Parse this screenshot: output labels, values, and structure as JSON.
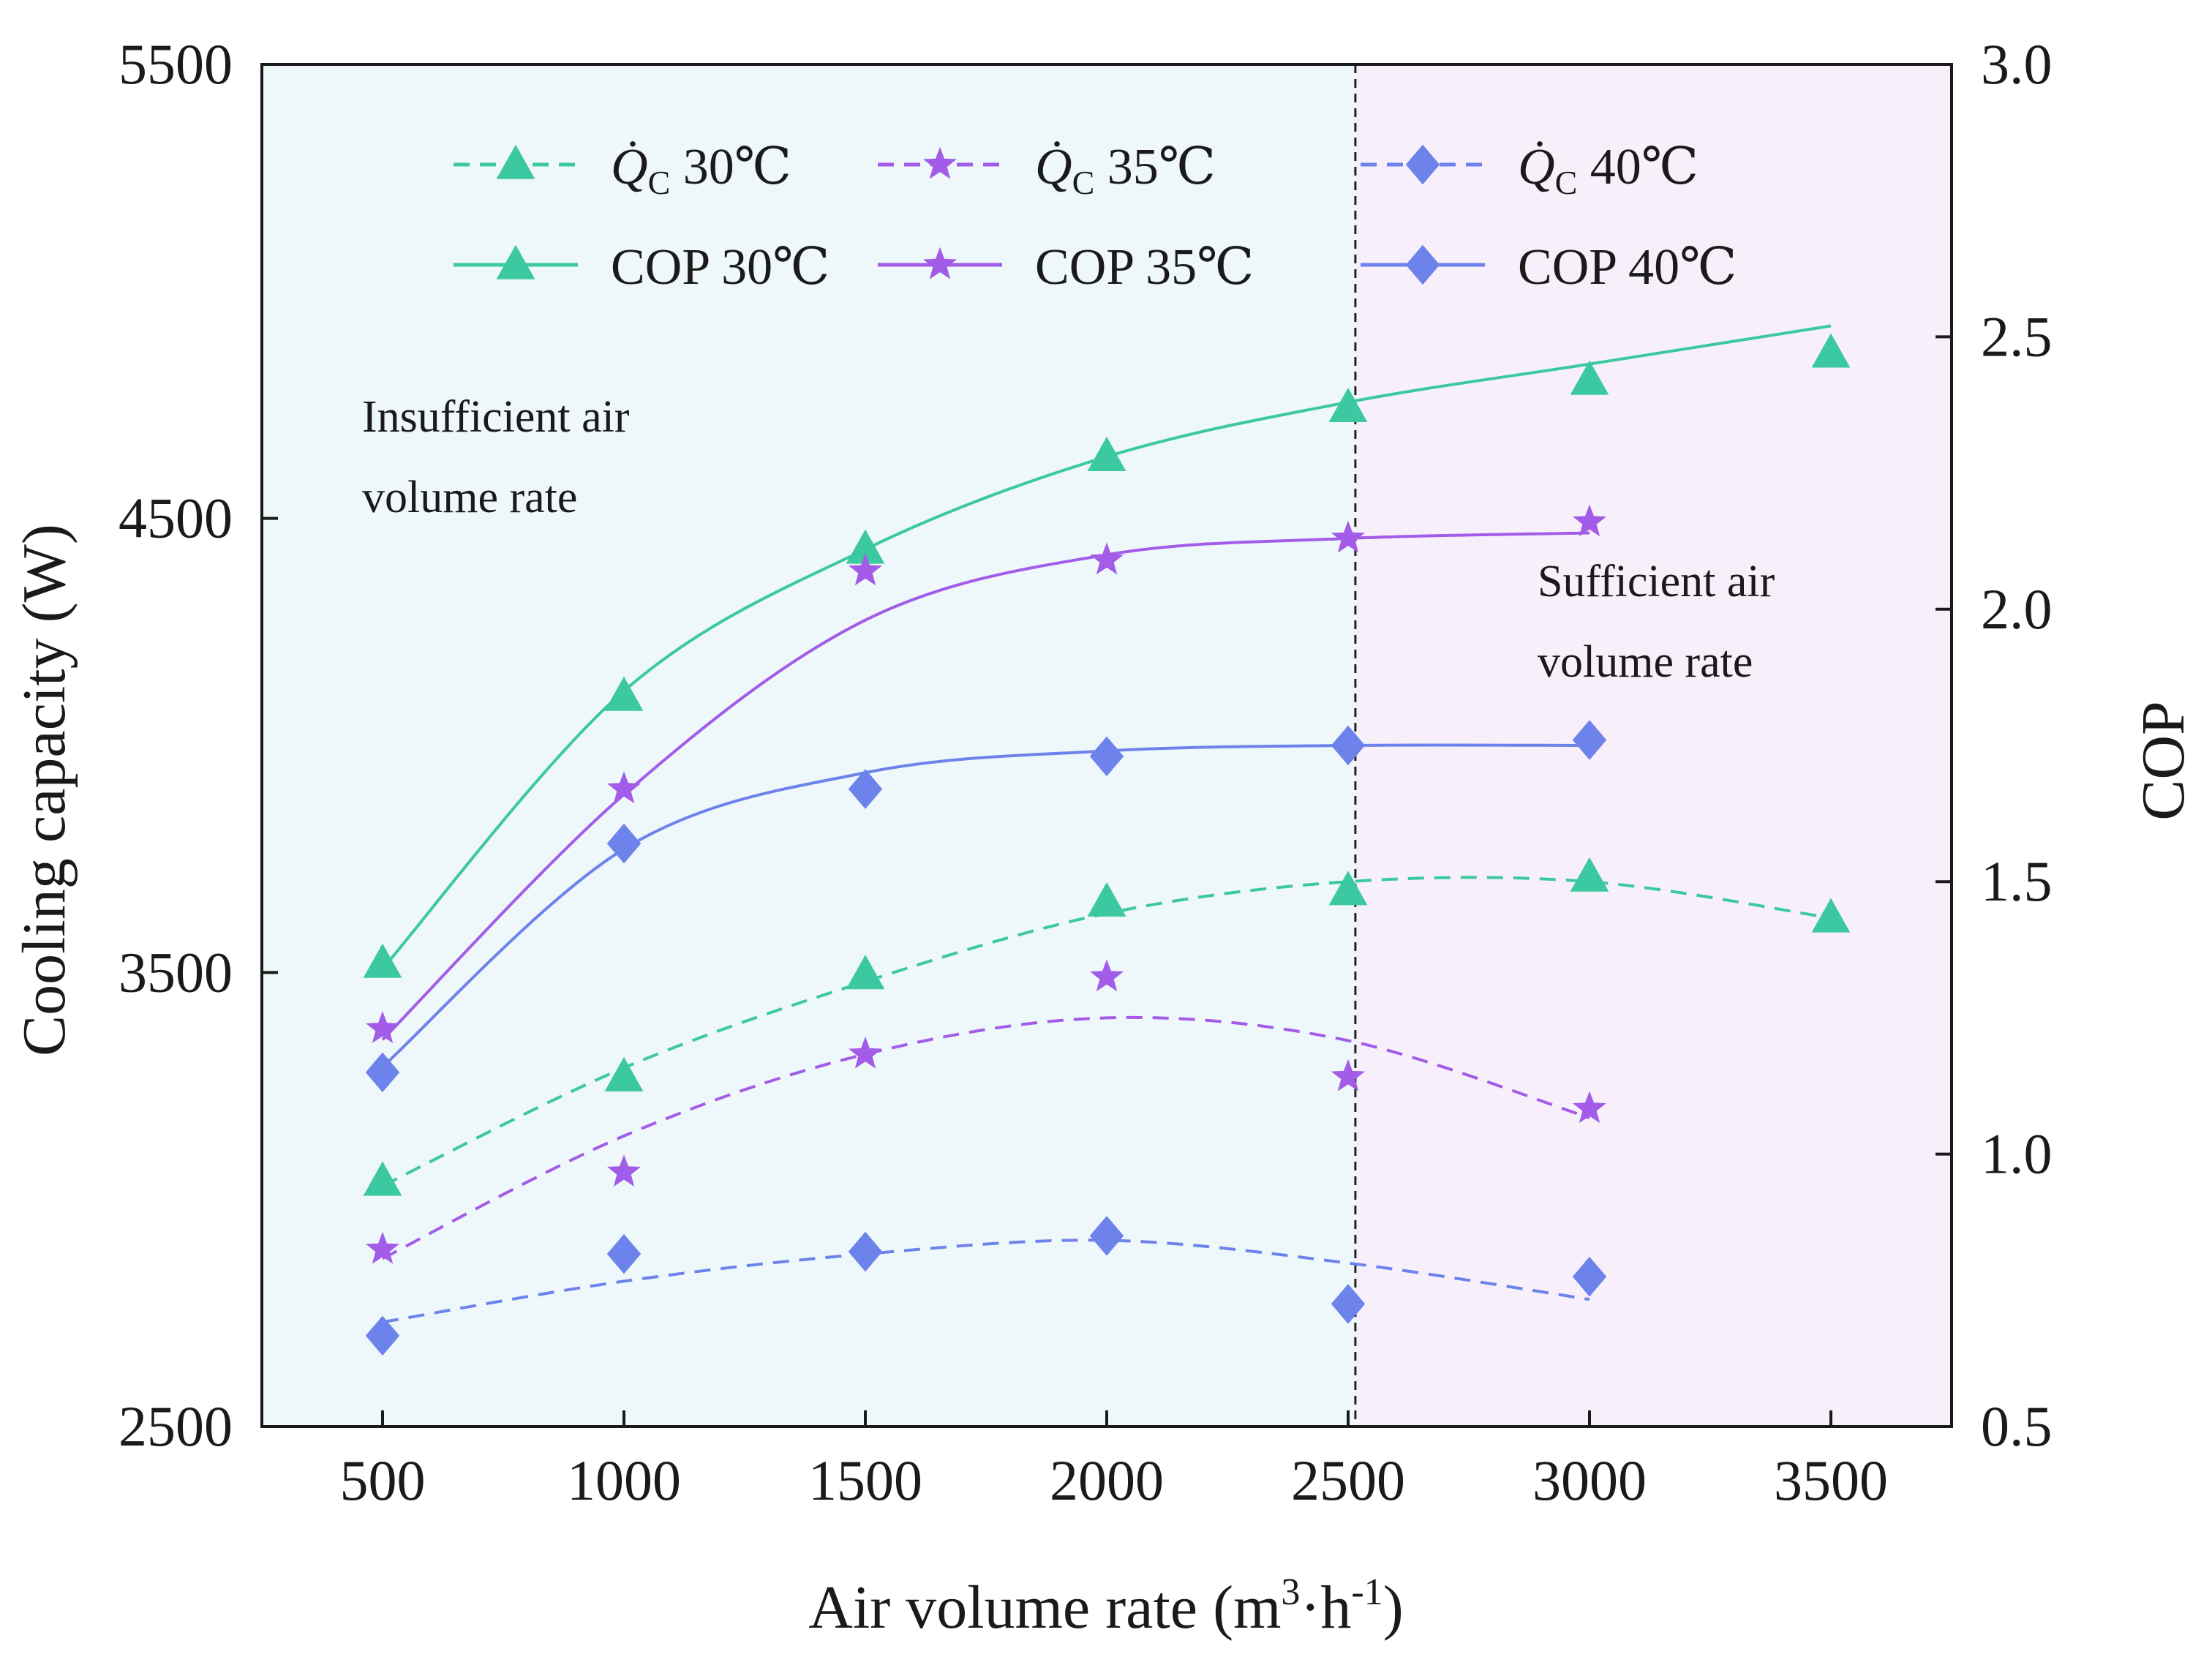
{
  "chart_data": {
    "type": "line",
    "xlabel_main": "Air volume rate (m",
    "xlabel_sup1": "3",
    "xlabel_mid": "·h",
    "xlabel_sup2": "-1",
    "xlabel_end": ")",
    "ylabel_left": "Cooling capacity (W)",
    "ylabel_right": "COP",
    "x_ticks": [
      500,
      1000,
      1500,
      2000,
      2500,
      3000,
      3500
    ],
    "x_tick_labels": [
      "500",
      "1000",
      "1500",
      "2000",
      "2500",
      "3000",
      "3500"
    ],
    "xlim": [
      250,
      3750
    ],
    "ylim_left": [
      2500,
      5500
    ],
    "ylim_right": [
      0.5,
      3.0
    ],
    "y_ticks_left": [
      "2500",
      "3500",
      "4500",
      "5500"
    ],
    "y_ticks_right": [
      "0.5",
      "1.0",
      "1.5",
      "2.0",
      "2.5",
      "3.0"
    ],
    "divider_x": 2515,
    "regions": [
      {
        "name": "insufficient",
        "from": 250,
        "to": 2515,
        "color": "#eef7fa"
      },
      {
        "name": "sufficient",
        "from": 2515,
        "to": 3750,
        "color": "#f7f0fb"
      }
    ],
    "annotations": [
      {
        "name": "insufficient",
        "lines": [
          "Insufficient air",
          "volume rate"
        ]
      },
      {
        "name": "sufficient",
        "lines": [
          "Sufficient air",
          "volume rate"
        ]
      }
    ],
    "series": [
      {
        "name": "Q̇C 30℃",
        "axis": "left",
        "style": "dashed",
        "marker": "triangle",
        "color": "#3cc8a0",
        "x": [
          500,
          1000,
          1500,
          2000,
          2500,
          3000,
          3500
        ],
        "values": [
          3040,
          3270,
          3495,
          3655,
          3680,
          3710,
          3620
        ],
        "fit": [
          3030,
          3290,
          3480,
          3630,
          3700,
          3700,
          3620
        ]
      },
      {
        "name": "Q̇C 35℃",
        "axis": "left",
        "style": "dashed",
        "marker": "star",
        "color": "#a25ce8",
        "x": [
          500,
          1000,
          1500,
          2000,
          2500,
          3000
        ],
        "values": [
          2890,
          3060,
          3320,
          3490,
          3270,
          3200
        ],
        "fit": [
          2870,
          3140,
          3320,
          3400,
          3350,
          3180
        ]
      },
      {
        "name": "Q̇C 40℃",
        "axis": "left",
        "style": "dashed",
        "marker": "diamond",
        "color": "#6d82ea",
        "x": [
          500,
          1000,
          1500,
          2000,
          2500,
          3000
        ],
        "values": [
          2700,
          2880,
          2885,
          2920,
          2770,
          2830
        ],
        "fit": [
          2730,
          2820,
          2880,
          2910,
          2860,
          2780
        ]
      },
      {
        "name": "COP 30℃",
        "axis": "right",
        "style": "solid",
        "marker": "triangle",
        "color": "#3cc8a0",
        "x": [
          500,
          1000,
          1500,
          2000,
          2500,
          3000,
          3500
        ],
        "values": [
          1.35,
          1.84,
          2.11,
          2.28,
          2.37,
          2.42,
          2.47
        ],
        "fit": [
          1.34,
          1.85,
          2.11,
          2.28,
          2.38,
          2.45,
          2.52
        ]
      },
      {
        "name": "COP 35℃",
        "axis": "right",
        "style": "solid",
        "marker": "star",
        "color": "#a25ce8",
        "x": [
          500,
          1000,
          1500,
          2000,
          2500,
          3000
        ],
        "values": [
          1.23,
          1.67,
          2.07,
          2.09,
          2.13,
          2.16
        ],
        "fit": [
          1.21,
          1.66,
          1.98,
          2.1,
          2.13,
          2.14
        ]
      },
      {
        "name": "COP 40℃",
        "axis": "right",
        "style": "solid",
        "marker": "diamond",
        "color": "#6d82ea",
        "x": [
          500,
          1000,
          1500,
          2000,
          2500,
          3000
        ],
        "values": [
          1.15,
          1.57,
          1.67,
          1.73,
          1.75,
          1.76
        ],
        "fit": [
          1.16,
          1.56,
          1.7,
          1.74,
          1.75,
          1.75
        ]
      }
    ],
    "legend": {
      "placement": "top",
      "entries": [
        {
          "label": "30℃",
          "prefix": "Q̇",
          "sub": "C",
          "series": 0
        },
        {
          "label": "35℃",
          "prefix": "Q̇",
          "sub": "C",
          "series": 1
        },
        {
          "label": "40℃",
          "prefix": "Q̇",
          "sub": "C",
          "series": 2
        },
        {
          "label": "COP 30℃",
          "series": 3
        },
        {
          "label": "COP 35℃",
          "series": 4
        },
        {
          "label": "COP 40℃",
          "series": 5
        }
      ]
    }
  }
}
